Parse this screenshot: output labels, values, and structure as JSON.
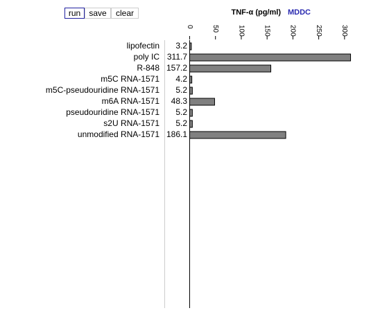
{
  "buttons": [
    "run",
    "save",
    "clear"
  ],
  "chart_data": {
    "type": "bar",
    "orientation": "horizontal",
    "title": "TNF-α (pg/ml)",
    "subtitle": "MDDC",
    "categories": [
      "lipofectin",
      "poly IC",
      "R-848",
      "m5C RNA-1571",
      "m5C-pseudouridine RNA-1571",
      "m6A RNA-1571",
      "pseudouridine RNA-1571",
      "s2U RNA-1571",
      "unmodified RNA-1571"
    ],
    "values": [
      3.2,
      311.7,
      157.2,
      4.2,
      5.2,
      48.3,
      5.2,
      5.2,
      186.1
    ],
    "color": "#808080",
    "xlim": [
      0,
      315
    ],
    "xticks": [
      0,
      50,
      100,
      150,
      200,
      250,
      300
    ]
  }
}
